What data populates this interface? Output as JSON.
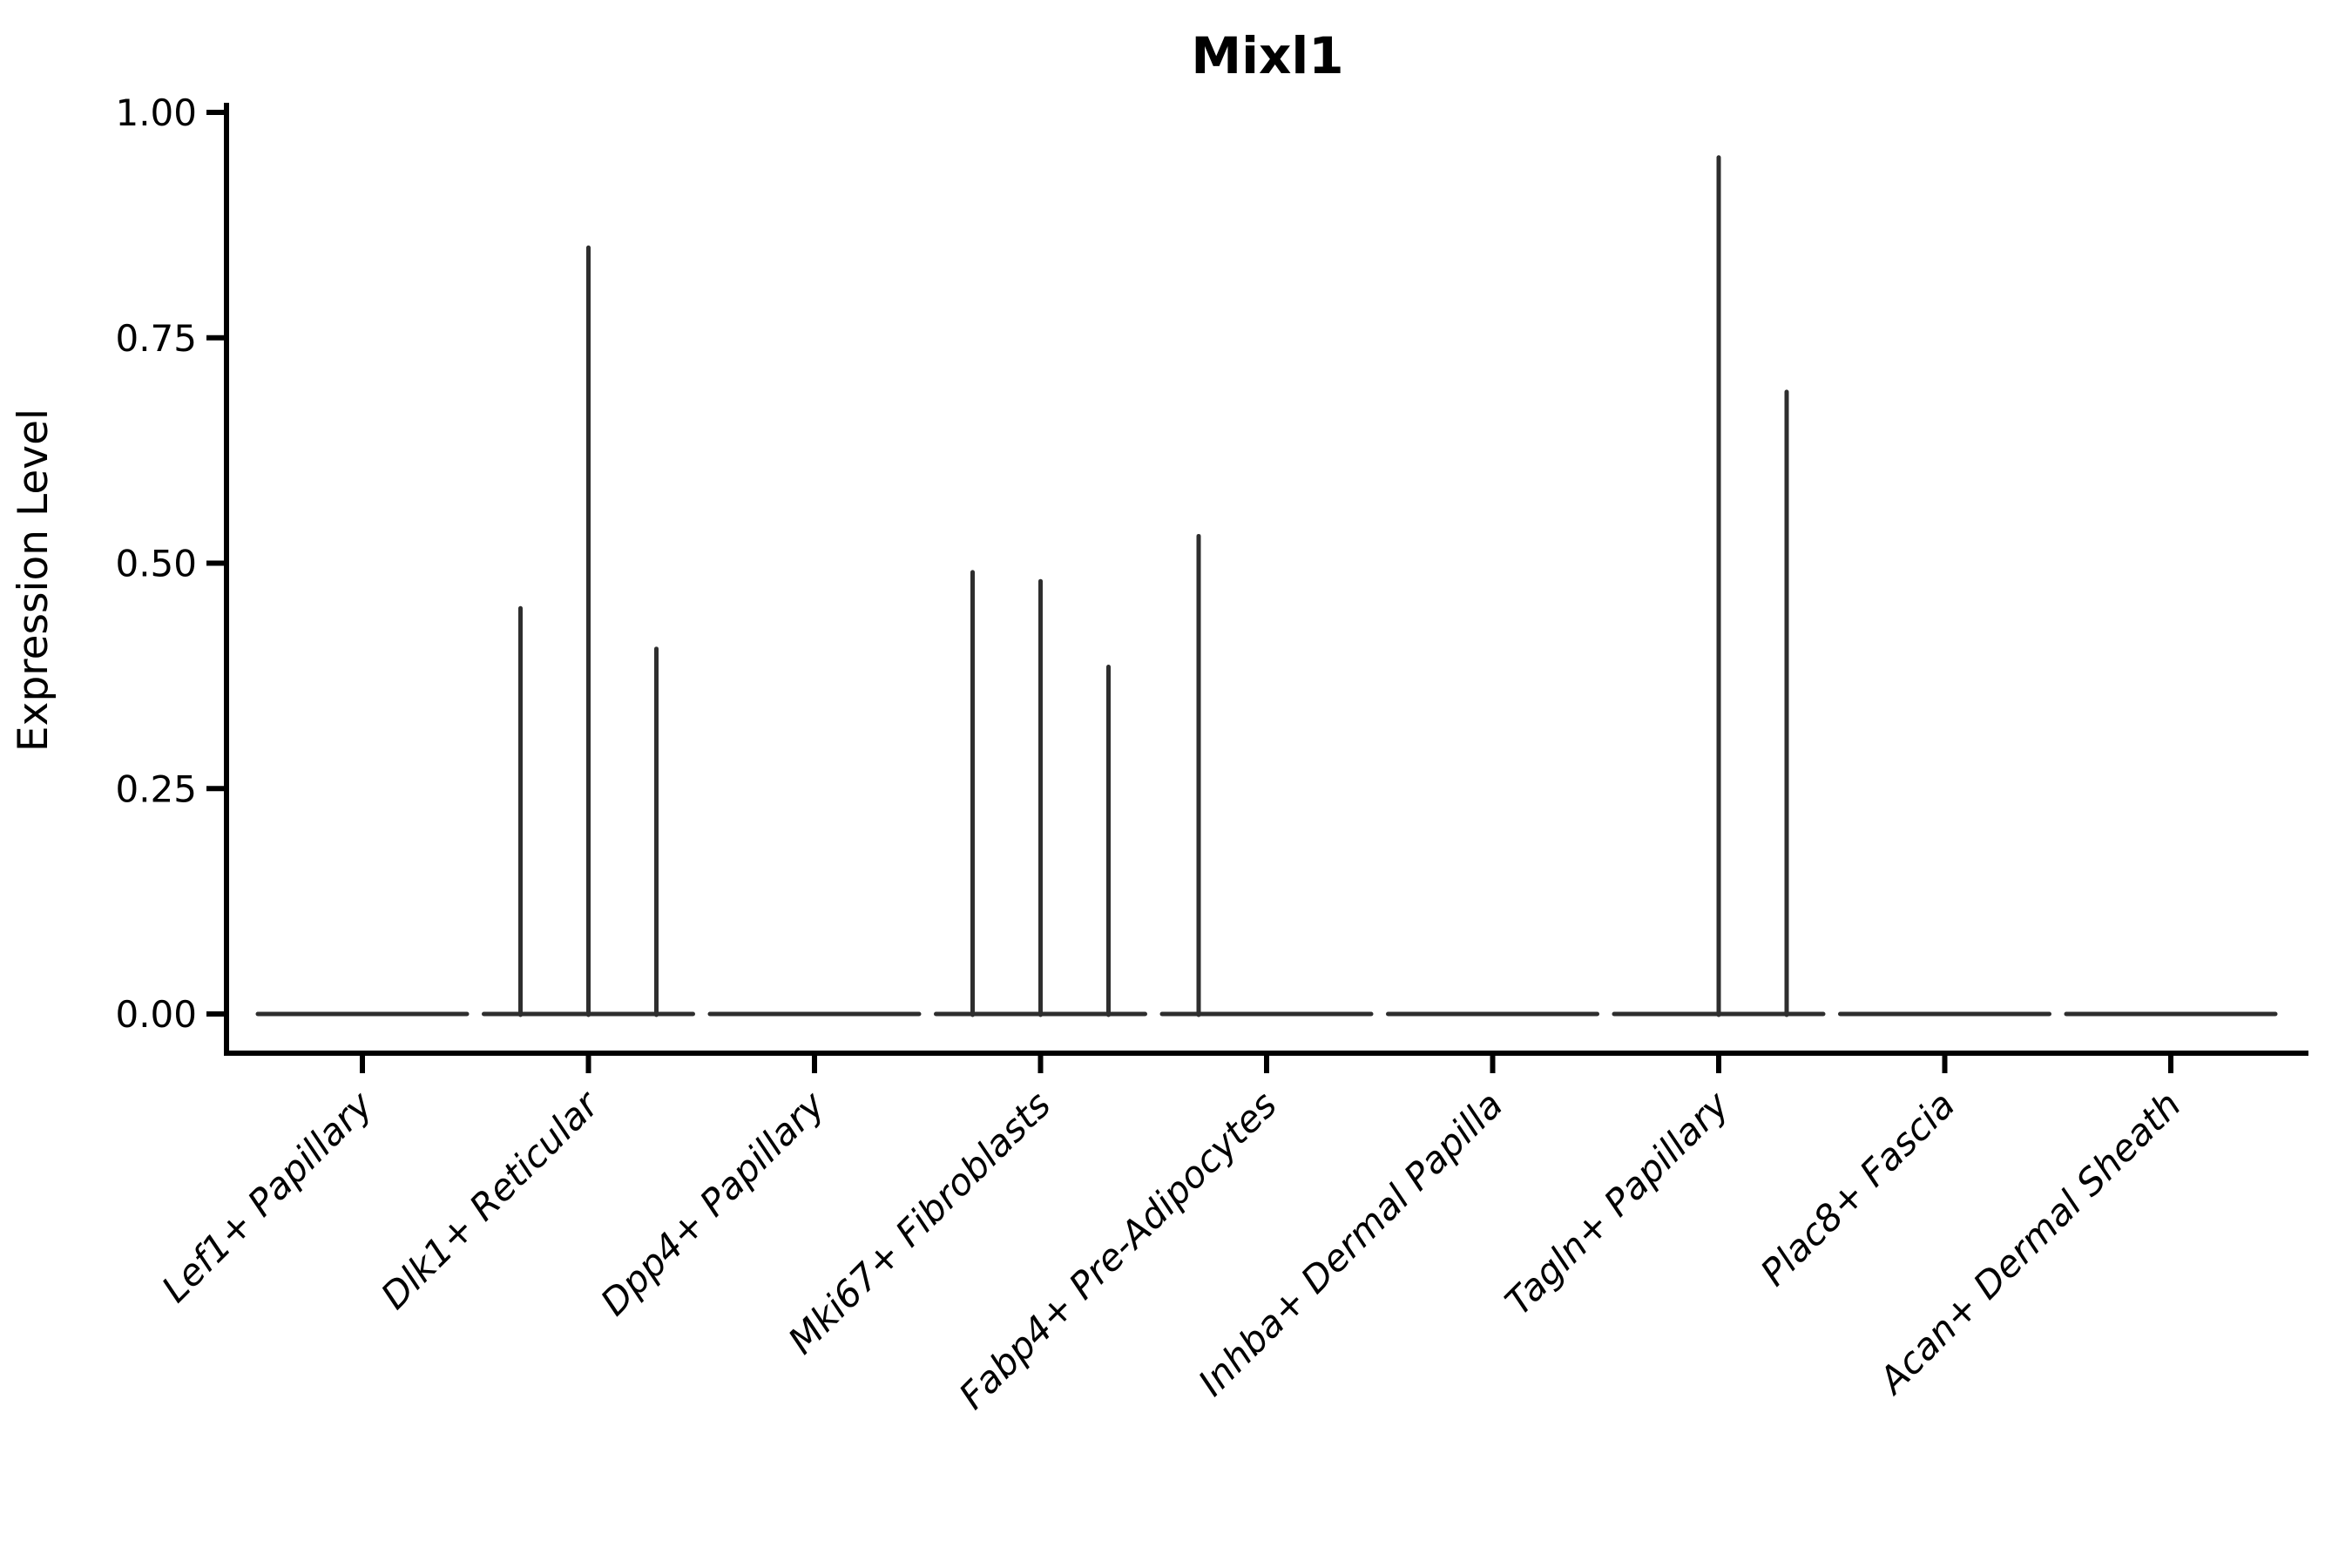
{
  "chart_data": {
    "type": "violin",
    "title": "Mixl1",
    "xlabel": "",
    "ylabel": "Expression Level",
    "ylim": [
      0.0,
      1.0
    ],
    "grid": false,
    "legend": "none",
    "yticks": [
      {
        "value": 0.0,
        "label": "0.00"
      },
      {
        "value": 0.25,
        "label": "0.25"
      },
      {
        "value": 0.5,
        "label": "0.50"
      },
      {
        "value": 0.75,
        "label": "0.75"
      },
      {
        "value": 1.0,
        "label": "1.00"
      }
    ],
    "categories": [
      "Lef1+ Papillary",
      "Dlk1+ Reticular",
      "Dpp4+ Papillary",
      "Mki67+ Fibroblasts",
      "Fabp4+ Pre-Adipocytes",
      "Inhba+ Dermal Papilla",
      "Tagln+ Papillary",
      "Plac8+ Fascia",
      "Acan+ Dermal Sheath"
    ],
    "violins": [
      {
        "category": "Lef1+ Papillary",
        "baseline_value": 0,
        "spikes": []
      },
      {
        "category": "Dlk1+ Reticular",
        "baseline_value": 0,
        "spikes": [
          {
            "offset": -78,
            "value": 0.45
          },
          {
            "offset": 0,
            "value": 0.85
          },
          {
            "offset": 78,
            "value": 0.405
          }
        ]
      },
      {
        "category": "Dpp4+ Papillary",
        "baseline_value": 0,
        "spikes": []
      },
      {
        "category": "Mki67+ Fibroblasts",
        "baseline_value": 0,
        "spikes": [
          {
            "offset": -78,
            "value": 0.49
          },
          {
            "offset": 0,
            "value": 0.48
          },
          {
            "offset": 78,
            "value": 0.385
          }
        ]
      },
      {
        "category": "Fabp4+ Pre-Adipocytes",
        "baseline_value": 0,
        "spikes": [
          {
            "offset": -78,
            "value": 0.53
          }
        ]
      },
      {
        "category": "Inhba+ Dermal Papilla",
        "baseline_value": 0,
        "spikes": []
      },
      {
        "category": "Tagln+ Papillary",
        "baseline_value": 0,
        "spikes": [
          {
            "offset": 0,
            "value": 0.95
          },
          {
            "offset": 78,
            "value": 0.69
          }
        ]
      },
      {
        "category": "Plac8+ Fascia",
        "baseline_value": 0,
        "spikes": []
      },
      {
        "category": "Acan+ Dermal Sheath",
        "baseline_value": 0,
        "spikes": []
      }
    ],
    "colors": {
      "violin": "#2e2e2e",
      "axis": "#000000",
      "text": "#000000",
      "background": "#ffffff"
    }
  }
}
